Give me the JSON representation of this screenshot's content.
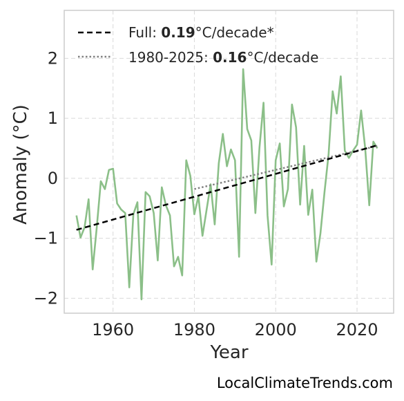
{
  "chart_data": {
    "type": "line",
    "title": "",
    "xlabel": "Year",
    "ylabel": "Anomaly (°C)",
    "xlim": [
      1948,
      2029
    ],
    "ylim": [
      -2.25,
      2.8
    ],
    "x_ticks": [
      1960,
      1980,
      2000,
      2020
    ],
    "x_tick_labels": [
      "1960",
      "1980",
      "2000",
      "2020"
    ],
    "y_ticks": [
      -2,
      -1,
      0,
      1,
      2
    ],
    "y_tick_labels": [
      "−2",
      "−1",
      "0",
      "1",
      "2"
    ],
    "grid": true,
    "legend_position": "top-left",
    "colors": {
      "series": "#8bbf88",
      "full_trend": "#000000",
      "recent_trend": "#808080",
      "frame": "#cccccc"
    },
    "series": [
      {
        "x": [
          1951,
          1952,
          1953,
          1954,
          1955,
          1956,
          1957,
          1958,
          1959,
          1960,
          1961,
          1962,
          1963,
          1964,
          1965,
          1966,
          1967,
          1968,
          1969,
          1970,
          1971,
          1972,
          1973,
          1974,
          1975,
          1976,
          1977,
          1978,
          1979,
          1980,
          1981,
          1982,
          1983,
          1984,
          1985,
          1986,
          1987,
          1988,
          1989,
          1990,
          1991,
          1992,
          1993,
          1994,
          1995,
          1996,
          1997,
          1998,
          1999,
          2000,
          2001,
          2002,
          2003,
          2004,
          2005,
          2006,
          2007,
          2008,
          2009,
          2010,
          2011,
          2012,
          2013,
          2014,
          2015,
          2016,
          2017,
          2018,
          2019,
          2020,
          2021,
          2022,
          2023,
          2024,
          2025
        ],
        "values": [
          -0.62,
          -0.99,
          -0.82,
          -0.35,
          -1.52,
          -0.82,
          -0.05,
          -0.18,
          0.14,
          0.16,
          -0.42,
          -0.52,
          -0.58,
          -1.82,
          -0.6,
          -0.4,
          -2.02,
          -0.23,
          -0.3,
          -0.58,
          -1.37,
          -0.15,
          -0.45,
          -0.62,
          -1.47,
          -1.31,
          -1.62,
          0.3,
          0.04,
          -0.6,
          -0.3,
          -0.96,
          -0.53,
          -0.1,
          -0.77,
          0.25,
          0.74,
          0.2,
          0.48,
          0.3,
          -1.31,
          1.82,
          0.82,
          0.63,
          -0.58,
          0.51,
          1.26,
          -0.62,
          -1.44,
          0.3,
          0.58,
          -0.47,
          -0.18,
          1.23,
          0.85,
          -0.44,
          0.54,
          -0.61,
          -0.19,
          -1.39,
          -0.92,
          -0.23,
          0.4,
          1.45,
          1.08,
          1.7,
          0.46,
          0.34,
          0.46,
          0.56,
          1.13,
          0.5,
          -0.45,
          0.61,
          0.5
        ]
      }
    ],
    "trend_full": {
      "x": [
        1951,
        2025
      ],
      "values": [
        -0.86,
        0.55
      ]
    },
    "trend_recent": {
      "x": [
        1980,
        2025
      ],
      "values": [
        -0.18,
        0.54
      ]
    },
    "legend": [
      {
        "prefix": "Full: ",
        "rate": "0.19",
        "suffix": "°C/decade*",
        "style": "dashed"
      },
      {
        "prefix": "1980-2025: ",
        "rate": "0.16",
        "suffix": "°C/decade",
        "style": "dotted"
      }
    ]
  },
  "watermark": "LocalClimateTrends.com"
}
